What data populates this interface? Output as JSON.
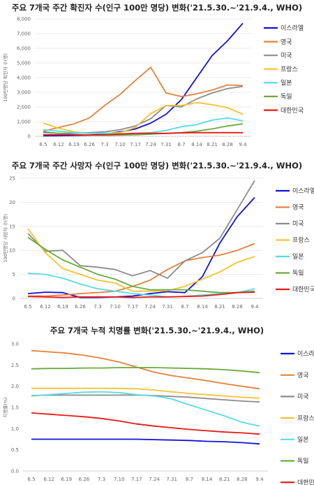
{
  "chart_data": [
    {
      "type": "line",
      "title": "주요 7개국 주간 확진자 수(인구 100만 명당) 변화('21.5.30.~'21.9.4., WHO)",
      "ylabel": "100만명당 확진자 수(명)",
      "categories": [
        "6.5",
        "6.12",
        "6.19",
        "6.26",
        "7.3",
        "7.10",
        "7.17",
        "7.24",
        "7.31",
        "8.7",
        "8.14",
        "8.21",
        "8.28",
        "9.4"
      ],
      "ylim": [
        0,
        8000
      ],
      "yticks": [
        0,
        1000,
        2000,
        3000,
        4000,
        5000,
        6000,
        7000,
        8000
      ],
      "ytick_labels": [
        "0",
        "1,000",
        "2,000",
        "3,000",
        "4,000",
        "5,000",
        "6,000",
        "7,000",
        "8,000"
      ],
      "grid": true,
      "legend": "right",
      "series": [
        {
          "name": "이스라엘",
          "color": "#1010dc",
          "values": [
            30,
            40,
            50,
            80,
            150,
            300,
            500,
            900,
            1500,
            2500,
            4000,
            5500,
            6500,
            7700
          ]
        },
        {
          "name": "영국",
          "color": "#e8803a",
          "values": [
            350,
            600,
            850,
            1250,
            2100,
            2850,
            3800,
            4700,
            2950,
            2700,
            2900,
            3150,
            3500,
            3450
          ]
        },
        {
          "name": "미국",
          "color": "#8c8c8c",
          "values": [
            250,
            200,
            200,
            250,
            300,
            450,
            700,
            1200,
            2100,
            2000,
            2550,
            2950,
            3250,
            3400
          ]
        },
        {
          "name": "프랑스",
          "color": "#f2c330",
          "values": [
            900,
            550,
            300,
            200,
            200,
            250,
            600,
            1550,
            2100,
            2100,
            2300,
            2150,
            1950,
            1500
          ]
        },
        {
          "name": "일본",
          "color": "#55dbe8",
          "values": [
            450,
            350,
            250,
            200,
            200,
            150,
            200,
            250,
            400,
            650,
            800,
            1100,
            1250,
            1050
          ]
        },
        {
          "name": "독일",
          "color": "#6aaa3e",
          "values": [
            300,
            200,
            100,
            80,
            60,
            80,
            100,
            150,
            200,
            250,
            350,
            500,
            700,
            850
          ]
        },
        {
          "name": "대한민국",
          "color": "#e81818",
          "values": [
            100,
            100,
            100,
            80,
            100,
            150,
            200,
            200,
            200,
            230,
            250,
            250,
            250,
            250
          ]
        }
      ]
    },
    {
      "type": "line",
      "title": "주요 7개국 주간 사망자 수(인구 100만 명당) 변화('21.5.30.~'21.9.4., WHO)",
      "ylabel": "100만명당 사망자 수(명)",
      "categories": [
        "6.5",
        "6.12",
        "6.19",
        "6.26",
        "7.3",
        "7.10",
        "7.17",
        "7.24",
        "7.31",
        "8.7",
        "8.14",
        "8.21",
        "8.28",
        "9.4"
      ],
      "ylim": [
        0,
        25
      ],
      "yticks": [
        0,
        5,
        10,
        15,
        20,
        25
      ],
      "ytick_labels": [
        "0",
        "5",
        "10",
        "15",
        "20",
        "25"
      ],
      "grid": true,
      "legend": "right",
      "series": [
        {
          "name": "이스라엘",
          "color": "#1010dc",
          "values": [
            1.0,
            1.3,
            1.2,
            0.2,
            0.2,
            0.3,
            0.5,
            1.0,
            1.4,
            1.2,
            4.5,
            11.5,
            17.0,
            21.0
          ]
        },
        {
          "name": "영국",
          "color": "#e8803a",
          "values": [
            0.5,
            0.5,
            0.7,
            1.0,
            1.2,
            1.5,
            2.5,
            3.8,
            6.0,
            7.8,
            8.5,
            9.0,
            10.0,
            11.4
          ]
        },
        {
          "name": "미국",
          "color": "#8c8c8c",
          "values": [
            13.5,
            9.8,
            10.0,
            6.8,
            6.5,
            6.0,
            4.7,
            5.8,
            4.2,
            7.8,
            9.5,
            12.5,
            18.5,
            24.5
          ]
        },
        {
          "name": "프랑스",
          "color": "#f2c330",
          "values": [
            14.5,
            9.5,
            6.2,
            5.0,
            3.8,
            3.2,
            1.5,
            1.5,
            1.6,
            2.5,
            4.0,
            5.5,
            7.5,
            8.7
          ]
        },
        {
          "name": "일본",
          "color": "#55dbe8",
          "values": [
            5.2,
            5.0,
            4.2,
            3.0,
            2.0,
            1.5,
            1.0,
            0.7,
            0.3,
            0.4,
            0.7,
            1.0,
            1.2,
            2.0
          ]
        },
        {
          "name": "독일",
          "color": "#6aaa3e",
          "values": [
            12.7,
            10.2,
            8.0,
            6.5,
            5.0,
            4.0,
            2.5,
            1.8,
            1.8,
            1.8,
            1.5,
            1.2,
            1.2,
            1.5
          ]
        },
        {
          "name": "대한민국",
          "color": "#e81818",
          "values": [
            0.4,
            0.3,
            0.2,
            0.3,
            0.3,
            0.3,
            0.2,
            0.3,
            0.3,
            0.4,
            0.5,
            0.8,
            1.2,
            1.3
          ]
        }
      ]
    },
    {
      "type": "line",
      "title": "주요 7개국 누적 치명률 변화('21.5.30.~'21.9.4., WHO)",
      "ylabel": "치명률(%)",
      "categories": [
        "6.5",
        "6.12",
        "6.19",
        "6.26",
        "7.3",
        "7.10",
        "7.17",
        "7.24",
        "7.31",
        "8.7",
        "8.14",
        "8.21",
        "8.28",
        "9.4"
      ],
      "ylim": [
        0,
        3.0
      ],
      "yticks": [
        0,
        0.5,
        1.0,
        1.5,
        2.0,
        2.5,
        3.0
      ],
      "ytick_labels": [
        "0.0",
        "0.5",
        "1.0",
        "1.5",
        "2.0",
        "2.5",
        "3.0"
      ],
      "grid": false,
      "legend": "right",
      "series": [
        {
          "name": "이스라엘",
          "color": "#1010dc",
          "values": [
            0.75,
            0.75,
            0.75,
            0.75,
            0.75,
            0.75,
            0.75,
            0.74,
            0.73,
            0.72,
            0.7,
            0.69,
            0.67,
            0.64
          ]
        },
        {
          "name": "영국",
          "color": "#e8803a",
          "values": [
            2.84,
            2.81,
            2.78,
            2.73,
            2.66,
            2.57,
            2.45,
            2.33,
            2.25,
            2.19,
            2.13,
            2.06,
            2.0,
            1.94
          ]
        },
        {
          "name": "미국",
          "color": "#8c8c8c",
          "values": [
            1.78,
            1.79,
            1.79,
            1.79,
            1.79,
            1.79,
            1.79,
            1.78,
            1.76,
            1.74,
            1.71,
            1.68,
            1.65,
            1.63
          ]
        },
        {
          "name": "프랑스",
          "color": "#f2c330",
          "values": [
            1.95,
            1.95,
            1.95,
            1.95,
            1.95,
            1.95,
            1.94,
            1.91,
            1.87,
            1.83,
            1.8,
            1.77,
            1.74,
            1.72
          ]
        },
        {
          "name": "일본",
          "color": "#55dbe8",
          "values": [
            1.77,
            1.8,
            1.83,
            1.86,
            1.87,
            1.85,
            1.8,
            1.77,
            1.7,
            1.56,
            1.43,
            1.3,
            1.15,
            1.06
          ]
        },
        {
          "name": "독일",
          "color": "#6aaa3e",
          "values": [
            2.41,
            2.42,
            2.42,
            2.43,
            2.43,
            2.44,
            2.44,
            2.44,
            2.43,
            2.42,
            2.41,
            2.39,
            2.36,
            2.32
          ]
        },
        {
          "name": "대한민국",
          "color": "#e81818",
          "values": [
            1.37,
            1.34,
            1.31,
            1.28,
            1.24,
            1.18,
            1.11,
            1.06,
            1.02,
            0.98,
            0.95,
            0.92,
            0.9,
            0.87
          ]
        }
      ]
    }
  ]
}
